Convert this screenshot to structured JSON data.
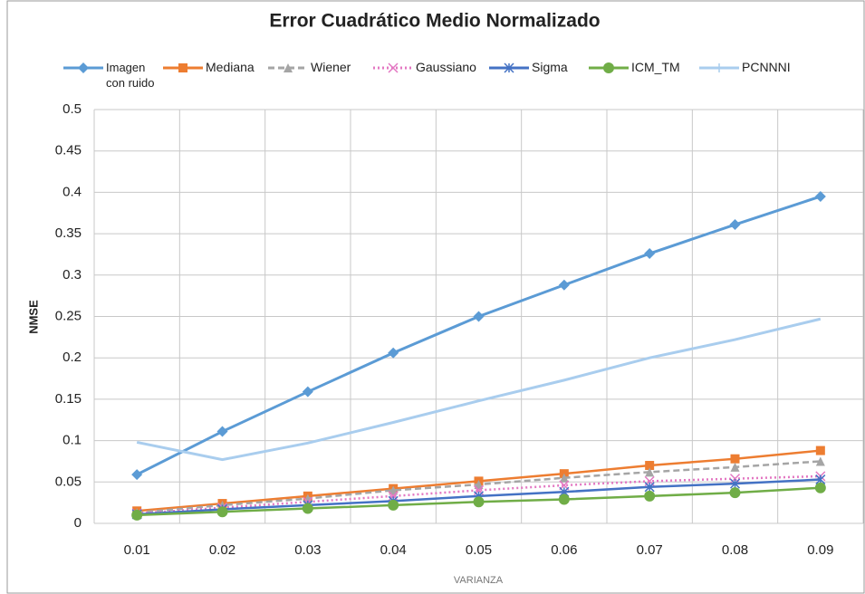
{
  "chart_data": {
    "type": "line",
    "title": "Error Cuadrático Medio Normalizado",
    "x_label": "VARIANZA",
    "y_label": "NMSE",
    "categories": [
      "0.01",
      "0.02",
      "0.03",
      "0.04",
      "0.05",
      "0.06",
      "0.07",
      "0.08",
      "0.09"
    ],
    "ylim": [
      0,
      0.5
    ],
    "yticks": [
      0,
      0.05,
      0.1,
      0.15,
      0.2,
      0.25,
      0.3,
      0.35,
      0.4,
      0.45,
      0.5
    ],
    "grid": true,
    "legend": "top",
    "series": [
      {
        "name": "Imagen con ruido",
        "color": "#5b9bd5",
        "marker": "diamond",
        "values": [
          0.059,
          0.111,
          0.159,
          0.206,
          0.25,
          0.288,
          0.326,
          0.361,
          0.395
        ]
      },
      {
        "name": "Mediana",
        "color": "#ed7d31",
        "marker": "square",
        "values": [
          0.015,
          0.024,
          0.033,
          0.042,
          0.051,
          0.06,
          0.07,
          0.078,
          0.088
        ]
      },
      {
        "name": "Wiener",
        "color": "#a5a5a5",
        "marker": "triangle",
        "dash": "dash",
        "values": [
          0.013,
          0.022,
          0.03,
          0.04,
          0.047,
          0.055,
          0.062,
          0.068,
          0.075
        ]
      },
      {
        "name": "Gaussiano",
        "color": "#e377c2",
        "marker": "x",
        "dash": "dot",
        "values": [
          0.012,
          0.019,
          0.026,
          0.033,
          0.04,
          0.046,
          0.051,
          0.054,
          0.057
        ]
      },
      {
        "name": "Sigma",
        "color": "#4472c4",
        "marker": "star",
        "values": [
          0.011,
          0.017,
          0.022,
          0.027,
          0.033,
          0.038,
          0.044,
          0.048,
          0.053
        ]
      },
      {
        "name": "ICM_TM",
        "color": "#70ad47",
        "marker": "circle",
        "values": [
          0.01,
          0.014,
          0.018,
          0.022,
          0.026,
          0.029,
          0.033,
          0.037,
          0.043
        ]
      },
      {
        "name": "PCNNNI",
        "color": "#a9cdee",
        "marker": "plus",
        "values": [
          0.098,
          0.077,
          0.097,
          0.122,
          0.148,
          0.173,
          0.2,
          0.222,
          0.247
        ]
      }
    ]
  }
}
